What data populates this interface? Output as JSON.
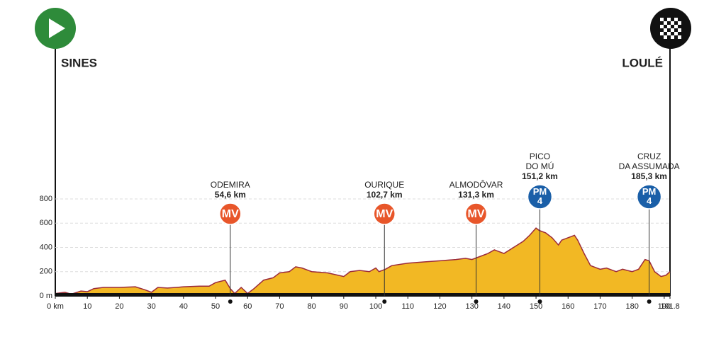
{
  "chart_data": {
    "type": "area",
    "start": "SINES",
    "finish": "LOULÉ",
    "x": [
      0,
      3,
      5,
      8,
      10,
      12,
      15,
      20,
      25,
      28,
      30,
      32,
      35,
      40,
      45,
      48,
      50,
      53,
      54.6,
      56,
      58,
      60,
      62,
      65,
      68,
      70,
      73,
      75,
      77,
      80,
      85,
      90,
      92,
      95,
      98,
      100,
      101,
      103,
      105,
      110,
      115,
      120,
      125,
      128,
      130,
      133,
      135,
      137,
      140,
      143,
      146,
      148,
      150,
      151,
      153,
      155,
      157,
      158,
      160,
      162,
      163,
      165,
      167,
      170,
      172,
      175,
      177,
      180,
      182,
      184,
      185.3,
      187,
      189,
      190.5,
      191.8
    ],
    "values": [
      20,
      30,
      15,
      40,
      35,
      60,
      70,
      70,
      75,
      50,
      30,
      70,
      65,
      75,
      80,
      80,
      110,
      130,
      60,
      20,
      70,
      20,
      60,
      130,
      150,
      190,
      200,
      240,
      230,
      200,
      190,
      160,
      200,
      210,
      200,
      230,
      200,
      220,
      250,
      270,
      280,
      290,
      300,
      310,
      300,
      330,
      350,
      380,
      350,
      400,
      450,
      500,
      560,
      540,
      520,
      480,
      420,
      460,
      480,
      500,
      460,
      350,
      250,
      220,
      230,
      200,
      220,
      200,
      220,
      300,
      290,
      200,
      160,
      170,
      200
    ],
    "color": "#f2b824",
    "line_color": "#9c2a3a",
    "xlim": [
      0,
      191.8
    ],
    "xticks": [
      {
        "value": 0,
        "label": "0 km"
      },
      10,
      20,
      30,
      40,
      50,
      60,
      70,
      80,
      90,
      100,
      110,
      120,
      130,
      140,
      150,
      160,
      170,
      180,
      190,
      191.8
    ],
    "ylim": [
      0,
      800
    ],
    "yticks": [
      {
        "value": 0,
        "label": "0 m"
      },
      200,
      400,
      600,
      800
    ],
    "grid": true,
    "markers": [
      {
        "name": [
          "ODEMIRA"
        ],
        "km": 54.6,
        "km_label": "54,6 km",
        "badge": [
          "MV"
        ],
        "color": "#e8562a"
      },
      {
        "name": [
          "OURIQUE"
        ],
        "km": 102.7,
        "km_label": "102,7 km",
        "badge": [
          "MV"
        ],
        "color": "#e8562a"
      },
      {
        "name": [
          "ALMODÔVAR"
        ],
        "km": 131.3,
        "km_label": "131,3 km",
        "badge": [
          "MV"
        ],
        "color": "#e8562a"
      },
      {
        "name": [
          "PICO",
          "DO MÚ"
        ],
        "km": 151.2,
        "km_label": "151,2 km",
        "badge": [
          "PM",
          "4"
        ],
        "color": "#1a5fa8"
      },
      {
        "name": [
          "CRUZ",
          "DA ASSUMADA"
        ],
        "km": 185.3,
        "km_label": "185,3 km",
        "badge": [
          "PM",
          "4"
        ],
        "color": "#1a5fa8"
      }
    ]
  }
}
